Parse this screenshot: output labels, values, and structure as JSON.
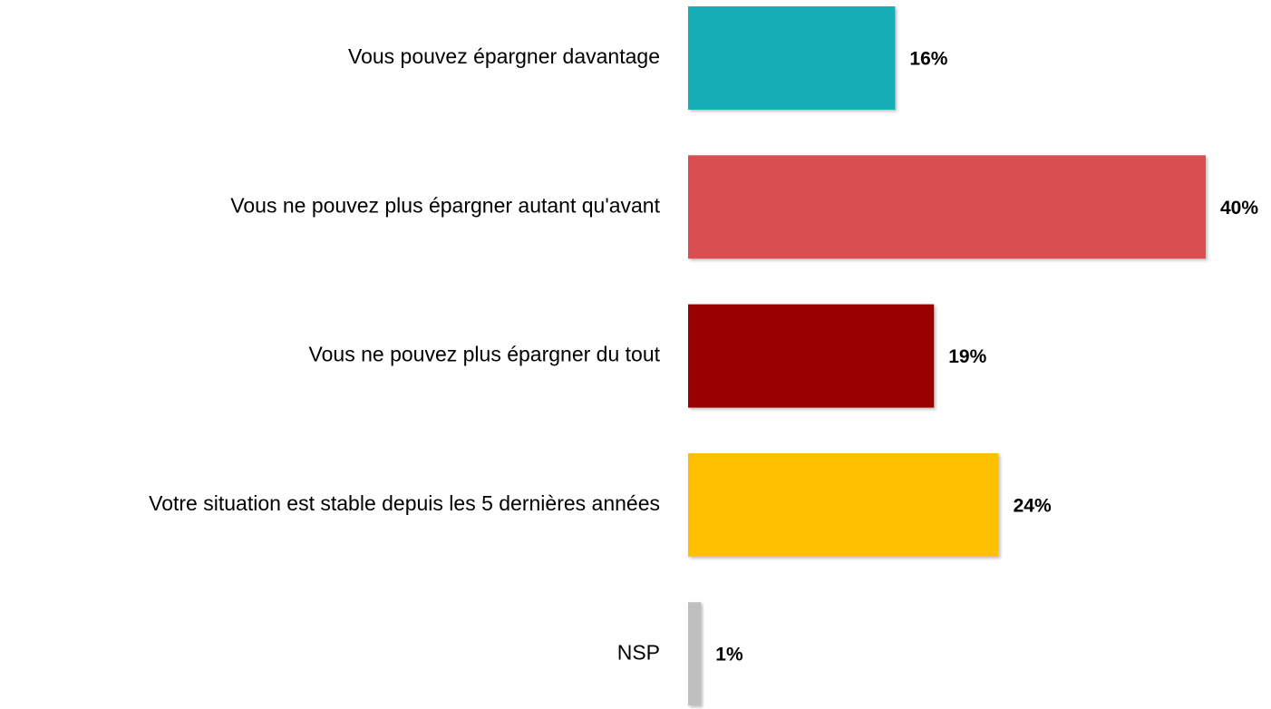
{
  "chart_data": {
    "type": "hbar",
    "categories": [
      "Vous pouvez épargner davantage",
      "Vous ne pouvez plus épargner autant qu'avant",
      "Vous ne pouvez plus épargner du tout",
      "Votre situation est stable depuis les 5 dernières années",
      "NSP"
    ],
    "values": [
      16,
      40,
      19,
      24,
      1
    ],
    "value_labels": [
      "16%",
      "40%",
      "19%",
      "24%",
      "1%"
    ],
    "colors": [
      "#14afb7",
      "#d94f51",
      "#980000",
      "#fec000",
      "#bfbfbf"
    ]
  }
}
